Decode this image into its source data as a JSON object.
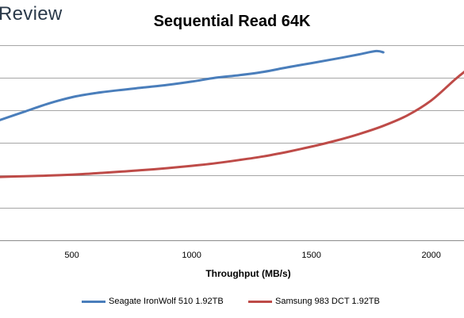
{
  "brand": {
    "logo_text": "Review"
  },
  "chart_data": {
    "type": "line",
    "title": "Sequential Read 64K",
    "xlabel": "Throughput (MB/s)",
    "ylabel": "",
    "x_ticks": [
      500,
      1000,
      1500,
      2000
    ],
    "xlim": [
      200,
      2150
    ],
    "ylim": [
      0,
      6
    ],
    "grid": true,
    "legend_position": "bottom",
    "series": [
      {
        "name": "Seagate IronWolf 510 1.92TB",
        "color": "#4a7ebb",
        "points": [
          [
            200,
            3.7
          ],
          [
            300,
            3.95
          ],
          [
            400,
            4.2
          ],
          [
            500,
            4.4
          ],
          [
            600,
            4.53
          ],
          [
            700,
            4.62
          ],
          [
            800,
            4.7
          ],
          [
            900,
            4.78
          ],
          [
            1000,
            4.88
          ],
          [
            1100,
            5.0
          ],
          [
            1200,
            5.08
          ],
          [
            1300,
            5.18
          ],
          [
            1400,
            5.32
          ],
          [
            1500,
            5.45
          ],
          [
            1600,
            5.58
          ],
          [
            1700,
            5.72
          ],
          [
            1770,
            5.82
          ],
          [
            1800,
            5.78
          ]
        ]
      },
      {
        "name": "Samsung 983 DCT 1.92TB",
        "color": "#be4b48",
        "points": [
          [
            200,
            1.95
          ],
          [
            300,
            1.97
          ],
          [
            400,
            1.99
          ],
          [
            500,
            2.02
          ],
          [
            600,
            2.06
          ],
          [
            700,
            2.11
          ],
          [
            800,
            2.16
          ],
          [
            900,
            2.22
          ],
          [
            1000,
            2.29
          ],
          [
            1100,
            2.37
          ],
          [
            1200,
            2.47
          ],
          [
            1300,
            2.58
          ],
          [
            1400,
            2.72
          ],
          [
            1500,
            2.88
          ],
          [
            1600,
            3.06
          ],
          [
            1700,
            3.27
          ],
          [
            1800,
            3.52
          ],
          [
            1900,
            3.84
          ],
          [
            2000,
            4.3
          ],
          [
            2100,
            4.95
          ],
          [
            2150,
            5.25
          ]
        ]
      }
    ]
  }
}
